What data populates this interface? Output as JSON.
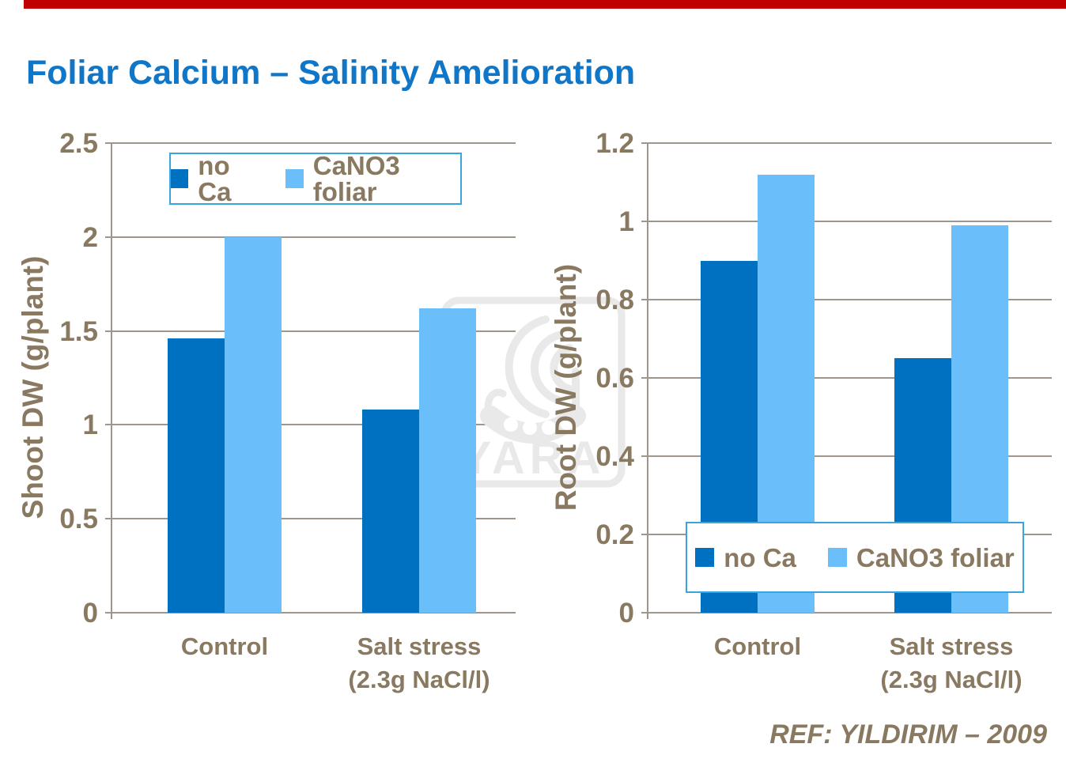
{
  "slide": {
    "title": "Foliar Calcium – Salinity Amelioration",
    "reference": "REF: YILDIRIM – 2009",
    "watermark_text": "YARA"
  },
  "colors": {
    "accent_bar": "#c00000",
    "title_color": "#1076c8",
    "axis_text": "#8a7961",
    "grid": "#9e968c",
    "legend_border": "#3aa5dc",
    "series_no_ca": "#0070c0",
    "series_cano3_foliar": "#6abefa",
    "watermark_gray": "#e9e9e9"
  },
  "chart_data": [
    {
      "type": "bar",
      "title": "",
      "xlabel": "",
      "ylabel": "Shoot DW (g/plant)",
      "ylim": [
        0,
        2.5
      ],
      "yticks": [
        "0",
        "0.5",
        "1",
        "1.5",
        "2",
        "2.5"
      ],
      "grid": true,
      "legend_position": "top-inside",
      "categories": [
        "Control",
        "Salt stress\n(2.3g NaCl/l)"
      ],
      "series": [
        {
          "name": "no Ca",
          "color": "#0070c0",
          "values": [
            1.46,
            1.08
          ]
        },
        {
          "name": "CaNO3 foliar",
          "color": "#6abefa",
          "values": [
            2.0,
            1.62
          ]
        }
      ]
    },
    {
      "type": "bar",
      "title": "",
      "xlabel": "",
      "ylabel": "Root DW (g/plant)",
      "ylim": [
        0,
        1.2
      ],
      "yticks": [
        "0",
        "0.2",
        "0.4",
        "0.6",
        "0.8",
        "1",
        "1.2"
      ],
      "grid": true,
      "legend_position": "bottom-inside-overlay",
      "categories": [
        "Control",
        "Salt stress\n(2.3g NaCl/l)"
      ],
      "series": [
        {
          "name": "no Ca",
          "color": "#0070c0",
          "values": [
            0.9,
            0.65
          ]
        },
        {
          "name": "CaNO3 foliar",
          "color": "#6abefa",
          "values": [
            1.12,
            0.99
          ]
        }
      ]
    }
  ]
}
